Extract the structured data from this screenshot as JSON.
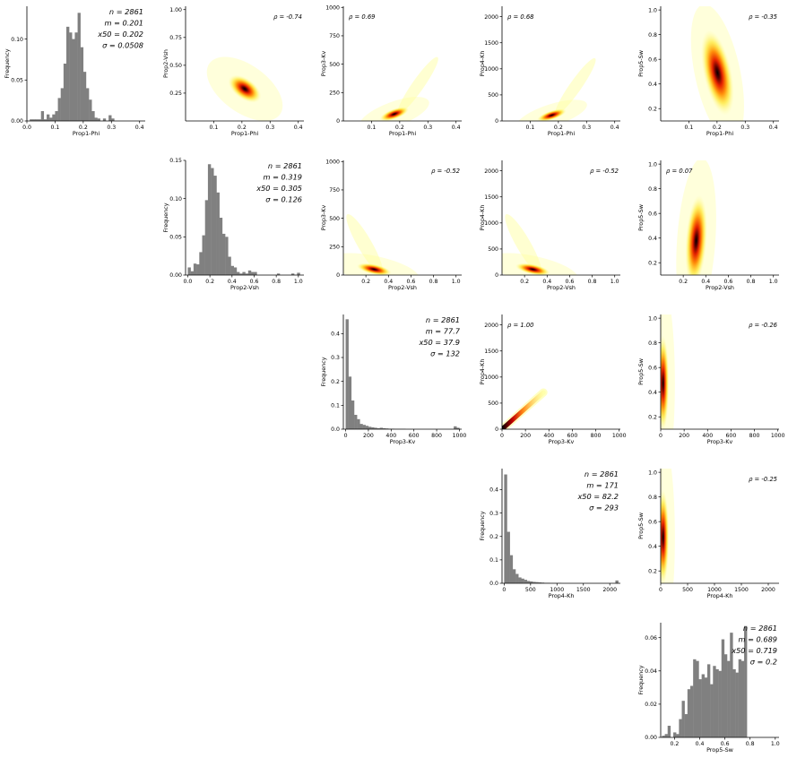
{
  "figure": {
    "type": "pair-plot",
    "variables": [
      "Prop1-Phi",
      "Prop2-Vsh",
      "Prop3-Kv",
      "Prop4-Kh",
      "Prop5-Sw"
    ],
    "hist_ylabel": "Frequency",
    "colors": {
      "hist": "#808080",
      "heat_low": "#ffff66",
      "heat_mid": "#ff3300",
      "heat_high": "#000000"
    }
  },
  "chart_data": [
    {
      "type": "bar",
      "panel": "hist-prop1-phi",
      "xlabel": "Prop1-Phi",
      "ylabel": "Frequency",
      "xlim": [
        0.0,
        0.42
      ],
      "ylim": [
        0,
        0.14
      ],
      "xticks": [
        "0.0",
        "0.1",
        "0.2",
        "0.3",
        "0.4"
      ],
      "yticks": [
        "0.00",
        "0.05",
        "0.10"
      ],
      "bin_start": 0.01,
      "bin_width": 0.01,
      "values": [
        0.002,
        0.002,
        0.002,
        0.002,
        0.012,
        0.002,
        0.008,
        0.004,
        0.008,
        0.012,
        0.028,
        0.04,
        0.07,
        0.115,
        0.108,
        0.1,
        0.108,
        0.132,
        0.09,
        0.06,
        0.04,
        0.026,
        0.012,
        0.004,
        0.003,
        0.0,
        0.003,
        0.0,
        0.007,
        0.003,
        0.0
      ],
      "stats": [
        "n = 2861",
        "m = 0.201",
        "x50 = 0.202",
        "σ = 0.0508"
      ]
    },
    {
      "type": "bar",
      "panel": "hist-prop2-vsh",
      "xlabel": "Prop2-Vsh",
      "ylabel": "Frequency",
      "xlim": [
        -0.02,
        1.05
      ],
      "ylim": [
        0,
        0.15
      ],
      "xticks": [
        "0.0",
        "0.2",
        "0.4",
        "0.6",
        "0.8",
        "1.0"
      ],
      "yticks": [
        "0.00",
        "0.05",
        "0.10",
        "0.15"
      ],
      "bin_start": 0.0,
      "bin_width": 0.026,
      "values": [
        0.01,
        0.005,
        0.015,
        0.014,
        0.03,
        0.052,
        0.098,
        0.145,
        0.14,
        0.13,
        0.108,
        0.075,
        0.054,
        0.05,
        0.024,
        0.012,
        0.01,
        0.004,
        0.002,
        0.004,
        0.002,
        0.006,
        0.004,
        0.004,
        0.0,
        0.0,
        0.0,
        0.0,
        0.0,
        0.0,
        0.0,
        0.002,
        0.0,
        0.0,
        0.0,
        0.0,
        0.002,
        0.0,
        0.003
      ],
      "stats": [
        "n = 2861",
        "m = 0.319",
        "x50 = 0.305",
        "σ = 0.126"
      ]
    },
    {
      "type": "bar",
      "panel": "hist-prop3-kv",
      "xlabel": "Prop3-Kv",
      "ylabel": "Frequency",
      "xlim": [
        -20,
        1020
      ],
      "ylim": [
        0,
        0.48
      ],
      "xticks": [
        "0",
        "200",
        "400",
        "600",
        "800",
        "1000"
      ],
      "yticks": [
        "0.0",
        "0.1",
        "0.2",
        "0.3",
        "0.4"
      ],
      "bin_start": 0,
      "bin_width": 25,
      "values": [
        0.46,
        0.22,
        0.12,
        0.06,
        0.042,
        0.022,
        0.018,
        0.014,
        0.01,
        0.008,
        0.006,
        0.004,
        0.006,
        0.004,
        0.003,
        0.002,
        0.002,
        0.001,
        0.001,
        0.001,
        0.001,
        0.0,
        0.0,
        0.0,
        0.0,
        0.0,
        0.0,
        0.0,
        0.0,
        0.0,
        0.0,
        0.0,
        0.0,
        0.0,
        0.0,
        0.0,
        0.0,
        0.0,
        0.012,
        0.006
      ],
      "stats": [
        "n = 2861",
        "m = 77.7",
        "x50 = 37.9",
        "σ = 132"
      ]
    },
    {
      "type": "bar",
      "panel": "hist-prop4-kh",
      "xlabel": "Prop4-Kh",
      "ylabel": "Frequency",
      "xlim": [
        -40,
        2200
      ],
      "ylim": [
        0,
        0.49
      ],
      "xticks": [
        "0",
        "500",
        "1000",
        "1500",
        "2000"
      ],
      "yticks": [
        "0.0",
        "0.1",
        "0.2",
        "0.3",
        "0.4"
      ],
      "bin_start": 0,
      "bin_width": 54,
      "values": [
        0.465,
        0.22,
        0.12,
        0.06,
        0.04,
        0.025,
        0.02,
        0.015,
        0.01,
        0.008,
        0.006,
        0.005,
        0.004,
        0.003,
        0.002,
        0.002,
        0.001,
        0.001,
        0.001,
        0.001,
        0.0,
        0.0,
        0.0,
        0.0,
        0.0,
        0.0,
        0.0,
        0.0,
        0.0,
        0.0,
        0.0,
        0.0,
        0.0,
        0.0,
        0.0,
        0.0,
        0.0,
        0.0,
        0.0,
        0.012
      ],
      "stats": [
        "n = 2861",
        "m = 171",
        "x50 = 82.2",
        "σ = 293"
      ]
    },
    {
      "type": "bar",
      "panel": "hist-prop5-sw",
      "xlabel": "Prop5-Sw",
      "ylabel": "Frequency",
      "xlim": [
        0.09,
        1.03
      ],
      "ylim": [
        0,
        0.069
      ],
      "xticks": [
        "0.2",
        "0.4",
        "0.6",
        "0.8",
        "1.0"
      ],
      "yticks": [
        "0.00",
        "0.02",
        "0.04",
        "0.06"
      ],
      "bin_start": 0.1,
      "bin_width": 0.0225,
      "values": [
        0.001,
        0.002,
        0.007,
        0.0,
        0.003,
        0.002,
        0.011,
        0.022,
        0.014,
        0.029,
        0.031,
        0.047,
        0.046,
        0.035,
        0.038,
        0.036,
        0.044,
        0.032,
        0.043,
        0.041,
        0.04,
        0.059,
        0.05,
        0.046,
        0.063,
        0.041,
        0.039,
        0.047,
        0.046,
        0.067
      ],
      "stats": [
        "n = 2861",
        "m = 0.689",
        "x50 = 0.719",
        "σ = 0.2"
      ]
    },
    {
      "type": "heatmap",
      "panel": "p1-p2",
      "xlabel": "Prop1-Phi",
      "ylabel": "Prop2-Vsh",
      "xlim": [
        0.0,
        0.42
      ],
      "ylim": [
        0.0,
        1.03
      ],
      "xticks": [
        "0.1",
        "0.2",
        "0.3",
        "0.4"
      ],
      "yticks": [
        "0.25",
        "0.50",
        "0.75",
        "1.00"
      ],
      "rho": "ρ = -0.74"
    },
    {
      "type": "heatmap",
      "panel": "p1-p3",
      "xlabel": "Prop1-Phi",
      "ylabel": "Prop3-Kv",
      "xlim": [
        0.0,
        0.42
      ],
      "ylim": [
        0,
        1010
      ],
      "xticks": [
        "0.1",
        "0.2",
        "0.3",
        "0.4"
      ],
      "yticks": [
        "0",
        "250",
        "500",
        "750",
        "1000"
      ],
      "rho": "ρ = 0.69"
    },
    {
      "type": "heatmap",
      "panel": "p1-p4",
      "xlabel": "Prop1-Phi",
      "ylabel": "Prop4-Kh",
      "xlim": [
        0.0,
        0.42
      ],
      "ylim": [
        0,
        2200
      ],
      "xticks": [
        "0.1",
        "0.2",
        "0.3",
        "0.4"
      ],
      "yticks": [
        "0",
        "500",
        "1000",
        "1500",
        "2000"
      ],
      "rho": "ρ = 0.68"
    },
    {
      "type": "heatmap",
      "panel": "p1-p5",
      "xlabel": "Prop1-Phi",
      "ylabel": "Prop5-Sw",
      "xlim": [
        0.0,
        0.42
      ],
      "ylim": [
        0.1,
        1.03
      ],
      "xticks": [
        "0.1",
        "0.2",
        "0.3",
        "0.4"
      ],
      "yticks": [
        "0.2",
        "0.4",
        "0.6",
        "0.8",
        "1.0"
      ],
      "rho": "ρ = -0.35"
    },
    {
      "type": "heatmap",
      "panel": "p2-p3",
      "xlabel": "Prop2-Vsh",
      "ylabel": "Prop3-Kv",
      "xlim": [
        0.0,
        1.05
      ],
      "ylim": [
        0,
        1010
      ],
      "xticks": [
        "0.2",
        "0.4",
        "0.6",
        "0.8",
        "1.0"
      ],
      "yticks": [
        "0",
        "250",
        "500",
        "750",
        "1000"
      ],
      "rho": "ρ = -0.52"
    },
    {
      "type": "heatmap",
      "panel": "p2-p4",
      "xlabel": "Prop2-Vsh",
      "ylabel": "Prop4-Kh",
      "xlim": [
        0.0,
        1.05
      ],
      "ylim": [
        0,
        2200
      ],
      "xticks": [
        "0.2",
        "0.4",
        "0.6",
        "0.8",
        "1.0"
      ],
      "yticks": [
        "0",
        "500",
        "1000",
        "1500",
        "2000"
      ],
      "rho": "ρ = -0.52"
    },
    {
      "type": "heatmap",
      "panel": "p2-p5",
      "xlabel": "Prop2-Vsh",
      "ylabel": "Prop5-Sw",
      "xlim": [
        0.0,
        1.05
      ],
      "ylim": [
        0.1,
        1.03
      ],
      "xticks": [
        "0.2",
        "0.4",
        "0.6",
        "0.8",
        "1.0"
      ],
      "yticks": [
        "0.2",
        "0.4",
        "0.6",
        "0.8",
        "1.0"
      ],
      "rho": "ρ = 0.07"
    },
    {
      "type": "heatmap",
      "panel": "p3-p4",
      "xlabel": "Prop3-Kv",
      "ylabel": "Prop4-Kh",
      "xlim": [
        0,
        1010
      ],
      "ylim": [
        0,
        2200
      ],
      "xticks": [
        "0",
        "200",
        "400",
        "600",
        "800",
        "1000"
      ],
      "yticks": [
        "0",
        "500",
        "1000",
        "1500",
        "2000"
      ],
      "rho": "ρ = 1.00"
    },
    {
      "type": "heatmap",
      "panel": "p3-p5",
      "xlabel": "Prop3-Kv",
      "ylabel": "Prop5-Sw",
      "xlim": [
        0,
        1010
      ],
      "ylim": [
        0.1,
        1.03
      ],
      "xticks": [
        "0",
        "200",
        "400",
        "600",
        "800",
        "1000"
      ],
      "yticks": [
        "0.2",
        "0.4",
        "0.6",
        "0.8",
        "1.0"
      ],
      "rho": "ρ = -0.26"
    },
    {
      "type": "heatmap",
      "panel": "p4-p5",
      "xlabel": "Prop4-Kh",
      "ylabel": "Prop5-Sw",
      "xlim": [
        0,
        2200
      ],
      "ylim": [
        0.1,
        1.03
      ],
      "xticks": [
        "0",
        "500",
        "1000",
        "1500",
        "2000"
      ],
      "yticks": [
        "0.2",
        "0.4",
        "0.6",
        "0.8",
        "1.0"
      ],
      "rho": "ρ = -0.25"
    }
  ]
}
